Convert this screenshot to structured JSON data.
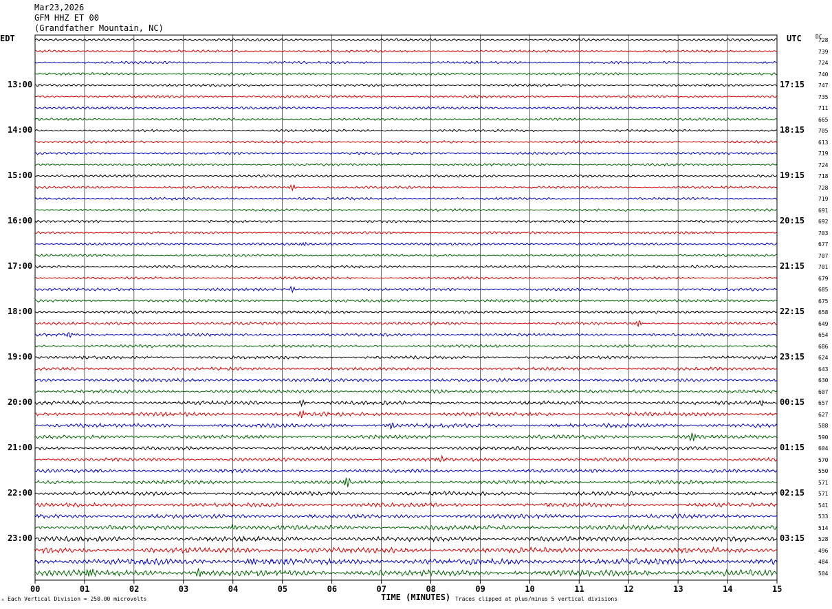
{
  "header": {
    "date": "Mar23,2026",
    "station": "GFM HHZ ET 00",
    "location": "(Grandfather Mountain, NC)"
  },
  "left_timezone": "EDT",
  "right_timezone": "UTC",
  "dc_header": "DC",
  "footer": {
    "scale_note": "Each Vertical Division =  250.00 microvolts",
    "xlabel": "TIME (MINUTES)",
    "clip_note": "Traces clipped at plus/minus 5 vertical divisions"
  },
  "colors": {
    "black": "#000000",
    "red": "#dd0000",
    "blue": "#0000cc",
    "green": "#006600"
  },
  "chart_data": {
    "type": "line",
    "title": "GFM HHZ ET 00 (Grandfather Mountain, NC)",
    "xlabel": "TIME (MINUTES)",
    "xlim": [
      0,
      15
    ],
    "x_ticks": [
      "00",
      "01",
      "02",
      "03",
      "04",
      "05",
      "06",
      "07",
      "08",
      "09",
      "10",
      "11",
      "12",
      "13",
      "14",
      "15"
    ],
    "trace_interval_minutes": 15,
    "color_cycle": [
      "black",
      "red",
      "blue",
      "green"
    ],
    "left_hour_labels": [
      "13:00",
      "14:00",
      "15:00",
      "16:00",
      "17:00",
      "18:00",
      "19:00",
      "20:00",
      "21:00",
      "22:00",
      "23:00"
    ],
    "right_hour_labels": [
      "17:15",
      "18:15",
      "19:15",
      "20:15",
      "21:15",
      "22:15",
      "23:15",
      "00:15",
      "01:15",
      "02:15",
      "03:15"
    ],
    "dc_offsets": [
      728,
      739,
      724,
      740,
      747,
      735,
      711,
      665,
      705,
      613,
      719,
      724,
      718,
      728,
      719,
      691,
      692,
      703,
      677,
      707,
      701,
      679,
      685,
      675,
      658,
      649,
      654,
      686,
      624,
      643,
      630,
      607,
      657,
      627,
      588,
      590,
      604,
      570,
      550,
      571,
      571,
      541,
      533,
      514,
      528,
      496,
      484,
      504
    ],
    "trace_amplitudes": [
      0.8,
      0.8,
      0.8,
      0.8,
      0.8,
      0.8,
      0.8,
      0.8,
      0.8,
      0.8,
      0.8,
      0.8,
      0.8,
      0.8,
      0.8,
      0.8,
      0.8,
      0.8,
      0.8,
      0.8,
      0.8,
      0.8,
      0.9,
      0.9,
      0.9,
      0.9,
      0.9,
      0.9,
      1.0,
      1.0,
      1.1,
      1.1,
      1.2,
      1.3,
      1.3,
      1.2,
      1.1,
      1.1,
      1.1,
      1.2,
      1.3,
      1.3,
      1.4,
      1.5,
      1.6,
      1.8,
      2.0,
      2.0
    ],
    "events": [
      {
        "trace": 13,
        "minute": 5.2,
        "amp": 2.0
      },
      {
        "trace": 18,
        "minute": 5.4,
        "amp": 1.3
      },
      {
        "trace": 22,
        "minute": 5.2,
        "amp": 2.0
      },
      {
        "trace": 25,
        "minute": 12.2,
        "amp": 2.2
      },
      {
        "trace": 26,
        "minute": 0.7,
        "amp": 1.8
      },
      {
        "trace": 32,
        "minute": 5.4,
        "amp": 2.0
      },
      {
        "trace": 32,
        "minute": 14.7,
        "amp": 1.8
      },
      {
        "trace": 33,
        "minute": 5.4,
        "amp": 2.6
      },
      {
        "trace": 34,
        "minute": 7.2,
        "amp": 2.2
      },
      {
        "trace": 35,
        "minute": 13.3,
        "amp": 3.0
      },
      {
        "trace": 37,
        "minute": 8.2,
        "amp": 1.8
      },
      {
        "trace": 39,
        "minute": 6.3,
        "amp": 3.2
      },
      {
        "trace": 43,
        "minute": 4.0,
        "amp": 2.0
      },
      {
        "trace": 45,
        "minute": 6.3,
        "amp": 2.0
      },
      {
        "trace": 46,
        "minute": 4.4,
        "amp": 2.8
      },
      {
        "trace": 47,
        "minute": 1.1,
        "amp": 2.4
      },
      {
        "trace": 47,
        "minute": 3.3,
        "amp": 2.6
      }
    ]
  }
}
